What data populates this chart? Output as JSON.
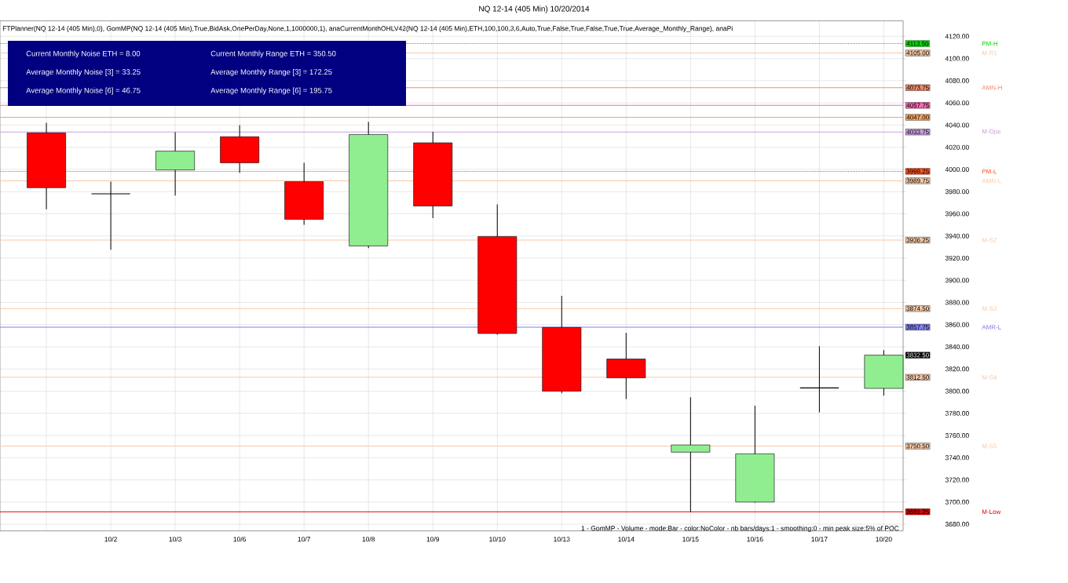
{
  "chart_data": {
    "type": "candlestick",
    "title": "NQ 12-14 (405 Min)  10/20/2014",
    "categories": [
      null,
      "10/2",
      "10/3",
      "10/6",
      "10/7",
      "10/8",
      "10/9",
      "10/10",
      "10/13",
      "10/14",
      "10/15",
      "10/16",
      "10/17",
      "10/20"
    ],
    "ohlc": [
      [
        4033,
        4042,
        3964,
        3983.5
      ],
      [
        3978,
        3989,
        3927.5,
        3978
      ],
      [
        3999.5,
        4033.5,
        3976.5,
        4016.5
      ],
      [
        4029.5,
        4040,
        3997,
        4006
      ],
      [
        3989,
        4006,
        3950,
        3955
      ],
      [
        3931,
        4043,
        3929,
        4031.5
      ],
      [
        4024,
        4034,
        3956,
        3967
      ],
      [
        3939.5,
        3968.5,
        3851,
        3852
      ],
      [
        3857.5,
        3886,
        3798,
        3800
      ],
      [
        3829,
        3852.5,
        3793,
        3812
      ],
      [
        3745,
        3794.5,
        3691.25,
        3751.5
      ],
      [
        3700,
        3787,
        3699.5,
        3743.5
      ],
      [
        3803,
        3840.5,
        3781,
        3803
      ],
      [
        3802.5,
        3837,
        3796,
        3832.5
      ]
    ],
    "colors": [
      "#ff0000",
      "#000000",
      "#90ee90",
      "#ff0000",
      "#ff0000",
      "#90ee90",
      "#ff0000",
      "#ff0000",
      "#ff0000",
      "#ff0000",
      "#90ee90",
      "#90ee90",
      "#000000",
      "#90ee90"
    ],
    "ylim": [
      3674,
      4134
    ],
    "yticks": [
      {
        "value": 3680,
        "label": "3680.00"
      },
      {
        "value": 3700,
        "label": "3700.00"
      },
      {
        "value": 3720,
        "label": "3720.00"
      },
      {
        "value": 3740,
        "label": "3740.00"
      },
      {
        "value": 3760,
        "label": "3760.00"
      },
      {
        "value": 3780,
        "label": "3780.00"
      },
      {
        "value": 3800,
        "label": "3800.00"
      },
      {
        "value": 3820,
        "label": "3820.00"
      },
      {
        "value": 3840,
        "label": "3840.00"
      },
      {
        "value": 3860,
        "label": "3860.00"
      },
      {
        "value": 3880,
        "label": "3880.00"
      },
      {
        "value": 3900,
        "label": "3900.00"
      },
      {
        "value": 3920,
        "label": "3920.00"
      },
      {
        "value": 3940,
        "label": "3940.00"
      },
      {
        "value": 3960,
        "label": "3960.00"
      },
      {
        "value": 3980,
        "label": "3980.00"
      },
      {
        "value": 4000,
        "label": "4000.00"
      },
      {
        "value": 4020,
        "label": "4020.00"
      },
      {
        "value": 4040,
        "label": "4040.00"
      },
      {
        "value": 4060,
        "label": "4060.00"
      },
      {
        "value": 4080,
        "label": "4080.00"
      },
      {
        "value": 4100,
        "label": "4100.00"
      },
      {
        "value": 4120,
        "label": "4120.00"
      }
    ],
    "grid": true,
    "ref_lines": [
      {
        "axis": "y",
        "value": 4113.5,
        "label": "PM-H",
        "color": "#00dd00",
        "line_style": "dotted"
      },
      {
        "axis": "y",
        "value": 4105,
        "label": "M-R1",
        "color": "#f5c9a8"
      },
      {
        "axis": "y",
        "value": 4073.75,
        "label": "AMN-H",
        "color": "#f08c6c"
      },
      {
        "axis": "y",
        "value": 4057.75,
        "label": null,
        "color": "#ff69b4"
      },
      {
        "axis": "y",
        "value": 4047,
        "label": null,
        "color": "#f4a460"
      },
      {
        "axis": "y",
        "value": 4033.75,
        "label": "M-Ope",
        "color": "#c8a0dc"
      },
      {
        "axis": "y",
        "value": 3998.25,
        "label": "PM-L",
        "color": "#ff5020",
        "line_style": "dotted"
      },
      {
        "axis": "y",
        "value": 3989.75,
        "label": "AMN-L",
        "color": "#f5c9a8"
      },
      {
        "axis": "y",
        "value": 3936.25,
        "label": "M-S2",
        "color": "#f5c9a8"
      },
      {
        "axis": "y",
        "value": 3874.5,
        "label": "M-S3",
        "color": "#f5c9a8"
      },
      {
        "axis": "y",
        "value": 3857.75,
        "label": "AMR-L",
        "color": "#8080f0"
      },
      {
        "axis": "y",
        "value": 3812.5,
        "label": "M-S4",
        "color": "#f5c9a8"
      },
      {
        "axis": "y",
        "value": 3750.5,
        "label": "M-S5",
        "color": "#f5c9a8"
      },
      {
        "axis": "y",
        "value": 3691.25,
        "label": "M-Low",
        "color": "#e00000"
      }
    ],
    "annotations": [
      "FTPlanner(NQ 12-14 (405 Min),0), GomMP(NQ 12-14 (405 Min),True,BidAsk,OnePerDay,None,1,1000000,1), anaCurrentMonthOHLV42(NQ 12-14 (405 Min),ETH,100,100,3,6,Auto,True,False,True,False,True,True,Average_Monthly_Range), anaPi",
      "Current Monthly Noise ETH = 8.00",
      "Current Monthly Range ETH = 350.50",
      "Average Monthly Noise [3] = 33.25",
      "Average Monthly Range [3] = 172.25",
      "Average Monthly Noise [6] = 46.75",
      "Average Monthly Range [6] = 195.75",
      "1 - GomMP - Volume - mode:Bar - color:NoColor - nb bars/days:1 - smoothing:0 - min peak size:5% of POC",
      "4113.50",
      "4105.00",
      "4073.75",
      "4057.75",
      "4047.00",
      "4033.75",
      "3998.25",
      "3989.75",
      "3936.25",
      "3874.50",
      "3857.75",
      "3812.50",
      "3750.50",
      "3691.25",
      "3832.50"
    ]
  }
}
